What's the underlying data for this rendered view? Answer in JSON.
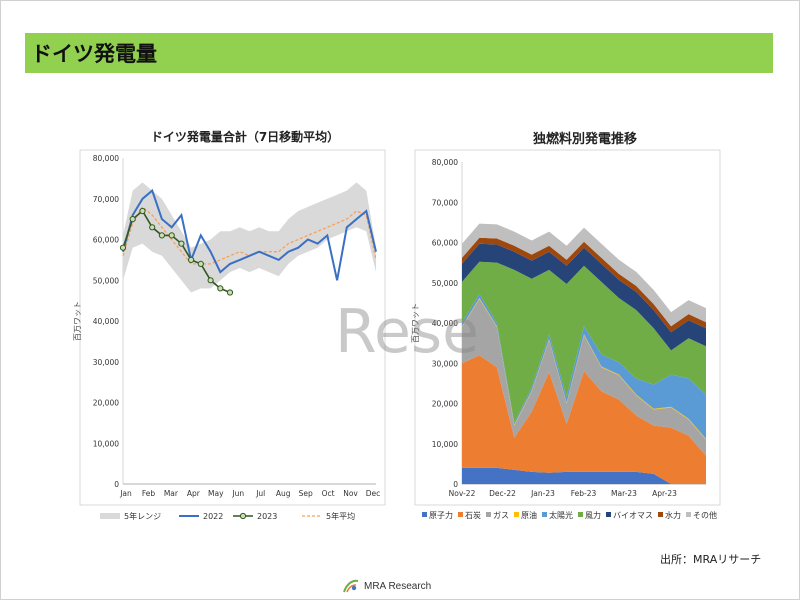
{
  "header": {
    "title": "ドイツ発電量"
  },
  "source": "出所：MRAリサーチ",
  "logo_text": "MRA Research",
  "watermark": "Rese",
  "colors": {
    "header_bg": "#92d050"
  },
  "chart_data": [
    {
      "type": "line",
      "title": "ドイツ発電量合計（7日移動平均）",
      "ylabel": "百万ワット",
      "ylim": [
        0,
        80000
      ],
      "yticks": [
        "0",
        "10,000",
        "20,000",
        "30,000",
        "40,000",
        "50,000",
        "60,000",
        "70,000",
        "80,000"
      ],
      "xticks": [
        "Jan",
        "Feb",
        "Mar",
        "Apr",
        "May",
        "Jun",
        "Jul",
        "Aug",
        "Sep",
        "Oct",
        "Nov",
        "Dec"
      ],
      "week": [
        0,
        2,
        4,
        6,
        8,
        10,
        12,
        14,
        16,
        18,
        20,
        22,
        24,
        26,
        28,
        30,
        32,
        34,
        36,
        38,
        40,
        42,
        44,
        46,
        48,
        50,
        52
      ],
      "series": [
        {
          "name": "5年レンジ",
          "kind": "band",
          "color": "#d9d9d9",
          "low": [
            50000,
            58000,
            59000,
            57000,
            56000,
            53000,
            50000,
            47000,
            48000,
            48000,
            50000,
            52000,
            53000,
            52000,
            53000,
            52000,
            51000,
            54000,
            56000,
            57000,
            58000,
            60000,
            61000,
            62000,
            63000,
            62000,
            52000
          ],
          "high": [
            61000,
            72000,
            74000,
            72000,
            70000,
            66000,
            62000,
            58000,
            59000,
            60000,
            62000,
            62000,
            63000,
            62000,
            63000,
            62000,
            62000,
            65000,
            67000,
            68000,
            69000,
            70000,
            71000,
            72000,
            74000,
            72000,
            58000
          ]
        },
        {
          "name": "2022",
          "kind": "line",
          "color": "#3a6fc4",
          "values": [
            57000,
            66000,
            70000,
            72000,
            65000,
            63000,
            66000,
            55000,
            61000,
            57000,
            52000,
            54000,
            55000,
            56000,
            57000,
            56000,
            55000,
            57000,
            58000,
            60000,
            59000,
            61000,
            50000,
            63000,
            65000,
            67000,
            57000
          ]
        },
        {
          "name": "2023",
          "kind": "marker-line",
          "color": "#375623",
          "marker_fill": "#c6e0b4",
          "values": [
            58000,
            65000,
            67000,
            63000,
            61000,
            61000,
            59000,
            55000,
            54000,
            50000,
            48000,
            47000
          ]
        },
        {
          "name": "5年平均",
          "kind": "dashed",
          "color": "#f4a15d",
          "values": [
            56000,
            64000,
            68000,
            66000,
            63000,
            60000,
            57000,
            54000,
            54000,
            54000,
            55000,
            56000,
            57000,
            56000,
            57000,
            57000,
            57000,
            59000,
            60000,
            61000,
            62000,
            63000,
            64000,
            65000,
            67000,
            66000,
            55000
          ]
        }
      ]
    },
    {
      "type": "area",
      "stacked": true,
      "title": "独燃料別発電推移",
      "ylabel": "百万ワット",
      "ylim": [
        0,
        80000
      ],
      "yticks": [
        "0",
        "10,000",
        "20,000",
        "30,000",
        "40,000",
        "50,000",
        "60,000",
        "70,000",
        "80,000"
      ],
      "xticks": [
        "Nov-22",
        "Dec-22",
        "Jan-23",
        "Feb-23",
        "Mar-23",
        "Apr-23"
      ],
      "week": [
        0,
        2,
        4,
        6,
        8,
        10,
        12,
        14,
        16,
        18,
        20,
        22,
        24,
        26,
        28
      ],
      "series": [
        {
          "name": "原子力",
          "color": "#4472c4",
          "values": [
            4000,
            4000,
            4000,
            3500,
            3000,
            2800,
            3000,
            3000,
            3000,
            3000,
            3000,
            2500,
            0,
            0,
            0
          ]
        },
        {
          "name": "石炭",
          "color": "#ed7d31",
          "values": [
            26000,
            28000,
            25000,
            8000,
            15000,
            25000,
            12000,
            25000,
            20000,
            18000,
            14000,
            12000,
            14000,
            12000,
            7000
          ]
        },
        {
          "name": "ガス",
          "color": "#a5a5a5",
          "values": [
            9000,
            14000,
            10000,
            3000,
            5000,
            8000,
            5000,
            9000,
            6000,
            6000,
            5000,
            4000,
            5000,
            4000,
            4000
          ]
        },
        {
          "name": "原油",
          "color": "#ffc000",
          "values": [
            200,
            200,
            200,
            200,
            200,
            200,
            200,
            200,
            200,
            200,
            200,
            200,
            200,
            200,
            200
          ]
        },
        {
          "name": "太陽光",
          "color": "#5b9bd5",
          "values": [
            1000,
            1000,
            800,
            500,
            800,
            1200,
            1500,
            2000,
            3000,
            3000,
            4000,
            6000,
            8000,
            10000,
            11000
          ]
        },
        {
          "name": "風力",
          "color": "#70ad47",
          "values": [
            10000,
            8000,
            15000,
            38000,
            27000,
            16000,
            28000,
            15000,
            18000,
            16000,
            17000,
            14000,
            6000,
            10000,
            12000
          ]
        },
        {
          "name": "バイオマス",
          "color": "#264478",
          "values": [
            4500,
            4500,
            4500,
            4500,
            4500,
            4500,
            4500,
            4500,
            4500,
            4500,
            4500,
            4500,
            4500,
            4500,
            4500
          ]
        },
        {
          "name": "水力",
          "color": "#9e480e",
          "values": [
            1500,
            1500,
            1500,
            1500,
            1500,
            1500,
            1500,
            1500,
            1500,
            1500,
            1500,
            1500,
            1500,
            1500,
            1500
          ]
        },
        {
          "name": "その他",
          "color": "#bfbfbf",
          "values": [
            3500,
            3500,
            3500,
            3500,
            3500,
            3500,
            3500,
            3500,
            3500,
            3500,
            3500,
            3500,
            3500,
            3500,
            3500
          ]
        }
      ]
    }
  ]
}
